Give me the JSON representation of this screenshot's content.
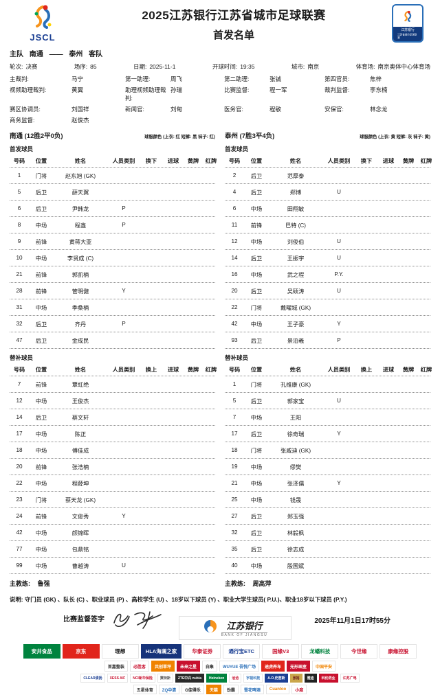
{
  "header": {
    "logo_abbr": "JSCL",
    "title": "2025江苏银行江苏省城市足球联赛",
    "subtitle": "首发名单",
    "badge_line1": "江苏银行",
    "badge_line2": "江苏省城市足球联赛"
  },
  "match": {
    "home_label": "主队",
    "home_team": "南通",
    "vs_dash": "——",
    "away_team": "泰州",
    "away_label": "客队",
    "info": [
      {
        "label": "轮次:",
        "value": "决赛"
      },
      {
        "label": "场序:",
        "value": "85"
      },
      {
        "label": "日期:",
        "value": "2025-11-1"
      },
      {
        "label": "开球时间:",
        "value": "19:35"
      },
      {
        "label": "城市:",
        "value": "南京"
      },
      {
        "label": "体育场:",
        "value": "南京奥体中心体育场"
      }
    ],
    "officials": [
      [
        {
          "label": "主裁判:",
          "value": "马宁"
        },
        {
          "label": "第一助理:",
          "value": "周飞"
        },
        {
          "label": "第二助理:",
          "value": "张铖"
        },
        {
          "label": "第四官员:",
          "value": "焦梓"
        }
      ],
      [
        {
          "label": "视频助理裁判:",
          "value": "黄翼"
        },
        {
          "label": "助理视频助理裁判:",
          "value": "孙瑞"
        },
        {
          "label": "比赛监督:",
          "value": "程一军"
        },
        {
          "label": "裁判监督:",
          "value": "李东楠"
        }
      ],
      [
        {
          "label": "赛区协调员:",
          "value": "刘国祥"
        },
        {
          "label": "新闻官:",
          "value": "刘甸"
        },
        {
          "label": "医务官:",
          "value": "程敏"
        },
        {
          "label": "安保官:",
          "value": "林念龙"
        }
      ],
      [
        {
          "label": "商务监督:",
          "value": "赵俊杰"
        }
      ]
    ]
  },
  "teams": [
    {
      "title": "南通 (12胜2平0负)",
      "kit": "球服颜色 (上衣: 红 短裤: 黑 袜子: 红)",
      "starters_label": "首发球员",
      "starters_columns": [
        "号码",
        "位置",
        "姓名",
        "人员类别",
        "换下",
        "进球",
        "黄牌",
        "红牌"
      ],
      "starters": [
        {
          "no": "1",
          "pos": "门将",
          "name": "赵东旭 (GK)",
          "cat": ""
        },
        {
          "no": "5",
          "pos": "后卫",
          "name": "薛天翼",
          "cat": ""
        },
        {
          "no": "6",
          "pos": "后卫",
          "name": "尹韩龙",
          "cat": "P"
        },
        {
          "no": "8",
          "pos": "中场",
          "name": "程鑫",
          "cat": "P"
        },
        {
          "no": "9",
          "pos": "前锋",
          "name": "黄蒋大亚",
          "cat": ""
        },
        {
          "no": "10",
          "pos": "中场",
          "name": "李贤成 (C)",
          "cat": ""
        },
        {
          "no": "21",
          "pos": "前锋",
          "name": "郭凯楠",
          "cat": ""
        },
        {
          "no": "28",
          "pos": "前锋",
          "name": "管明健",
          "cat": "Y"
        },
        {
          "no": "31",
          "pos": "中场",
          "name": "季桑楠",
          "cat": ""
        },
        {
          "no": "32",
          "pos": "后卫",
          "name": "齐丹",
          "cat": "P"
        },
        {
          "no": "47",
          "pos": "后卫",
          "name": "金成民",
          "cat": ""
        }
      ],
      "subs_label": "替补球员",
      "subs_columns": [
        "号码",
        "位置",
        "姓名",
        "人员类别",
        "换上",
        "进球",
        "黄牌",
        "红牌"
      ],
      "subs": [
        {
          "no": "7",
          "pos": "前锋",
          "name": "覃虹绝",
          "cat": ""
        },
        {
          "no": "12",
          "pos": "中场",
          "name": "王俊杰",
          "cat": ""
        },
        {
          "no": "14",
          "pos": "后卫",
          "name": "蔡文轩",
          "cat": ""
        },
        {
          "no": "17",
          "pos": "中场",
          "name": "陈正",
          "cat": ""
        },
        {
          "no": "18",
          "pos": "中场",
          "name": "傅佳成",
          "cat": ""
        },
        {
          "no": "20",
          "pos": "前锋",
          "name": "张浩楠",
          "cat": ""
        },
        {
          "no": "22",
          "pos": "中场",
          "name": "程薛坤",
          "cat": ""
        },
        {
          "no": "23",
          "pos": "门将",
          "name": "蔡天龙 (GK)",
          "cat": ""
        },
        {
          "no": "24",
          "pos": "前锋",
          "name": "文俊秀",
          "cat": "Y"
        },
        {
          "no": "42",
          "pos": "中场",
          "name": "颜锦晖",
          "cat": ""
        },
        {
          "no": "77",
          "pos": "中场",
          "name": "包鼎铭",
          "cat": ""
        },
        {
          "no": "99",
          "pos": "中场",
          "name": "曹越涛",
          "cat": "U"
        }
      ],
      "coach_label": "主教练:",
      "coach": "鲁强"
    },
    {
      "title": "泰州 (7胜3平4负)",
      "kit": "球服颜色 (上衣: 黄 短裤: 灰 袜子: 黄)",
      "starters_label": "首发球员",
      "starters_columns": [
        "号码",
        "位置",
        "姓名",
        "人员类别",
        "换下",
        "进球",
        "黄牌",
        "红牌"
      ],
      "starters": [
        {
          "no": "2",
          "pos": "后卫",
          "name": "范厚泰",
          "cat": ""
        },
        {
          "no": "4",
          "pos": "后卫",
          "name": "郑博",
          "cat": "U"
        },
        {
          "no": "6",
          "pos": "中场",
          "name": "田翔敏",
          "cat": ""
        },
        {
          "no": "11",
          "pos": "前锋",
          "name": "巴特 (C)",
          "cat": ""
        },
        {
          "no": "12",
          "pos": "中场",
          "name": "刘俊伯",
          "cat": "U"
        },
        {
          "no": "14",
          "pos": "后卫",
          "name": "王振宇",
          "cat": "U"
        },
        {
          "no": "16",
          "pos": "中场",
          "name": "武之程",
          "cat": "P.Y."
        },
        {
          "no": "20",
          "pos": "后卫",
          "name": "吴硕涛",
          "cat": "U"
        },
        {
          "no": "22",
          "pos": "门将",
          "name": "戴曜城 (GK)",
          "cat": ""
        },
        {
          "no": "42",
          "pos": "中场",
          "name": "王子豪",
          "cat": "Y"
        },
        {
          "no": "93",
          "pos": "后卫",
          "name": "景泊羲",
          "cat": "P"
        }
      ],
      "subs_label": "替补球员",
      "subs_columns": [
        "号码",
        "位置",
        "姓名",
        "人员类别",
        "换上",
        "进球",
        "黄牌",
        "红牌"
      ],
      "subs": [
        {
          "no": "1",
          "pos": "门将",
          "name": "孔维康 (GK)",
          "cat": ""
        },
        {
          "no": "5",
          "pos": "后卫",
          "name": "郭家宝",
          "cat": "U"
        },
        {
          "no": "7",
          "pos": "中场",
          "name": "王阳",
          "cat": ""
        },
        {
          "no": "17",
          "pos": "后卫",
          "name": "徐奇瑞",
          "cat": "Y"
        },
        {
          "no": "18",
          "pos": "门将",
          "name": "张威迪 (GK)",
          "cat": ""
        },
        {
          "no": "19",
          "pos": "中场",
          "name": "缪樊",
          "cat": ""
        },
        {
          "no": "21",
          "pos": "中场",
          "name": "张泽儒",
          "cat": "Y"
        },
        {
          "no": "25",
          "pos": "中场",
          "name": "钱晟",
          "cat": ""
        },
        {
          "no": "27",
          "pos": "后卫",
          "name": "郑玉强",
          "cat": ""
        },
        {
          "no": "32",
          "pos": "后卫",
          "name": "林毅枫",
          "cat": ""
        },
        {
          "no": "35",
          "pos": "后卫",
          "name": "徐志成",
          "cat": ""
        },
        {
          "no": "40",
          "pos": "中场",
          "name": "殷国斌",
          "cat": ""
        }
      ],
      "coach_label": "主教练:",
      "coach": "周高萍"
    }
  ],
  "footer": {
    "note": "说明: 守门员 (GK) 、队长 (C) 、职业球员 (P) 、高校学生 (U) 、18岁以下球员 (Y) 、职业大学生球员( P.U.)、职业18岁以下球员 (P.Y.)",
    "sign_label": "比赛监督签字",
    "signature_name": "程一军",
    "datetime": "2025年11月1日17时55分",
    "bank_name": "江苏银行",
    "bank_sub": "BANK OF JIANGSU"
  },
  "sponsors": {
    "row1": [
      {
        "label": "安井食品",
        "bg": "#00833e",
        "fg": "#ffffff"
      },
      {
        "label": "京东",
        "bg": "#e1251b",
        "fg": "#ffffff"
      },
      {
        "label": "理想",
        "bg": "#ffffff",
        "fg": "#111111"
      },
      {
        "label": "HLA海澜之家",
        "bg": "#16337a",
        "fg": "#ffffff"
      },
      {
        "label": "华泰证券",
        "bg": "#ffffff",
        "fg": "#c8102e"
      },
      {
        "label": "通行宝ETC",
        "bg": "#ffffff",
        "fg": "#1b3f93"
      },
      {
        "label": "国缘V3",
        "bg": "#ffffff",
        "fg": "#c8102e"
      },
      {
        "label": "龙蟠科技",
        "bg": "#ffffff",
        "fg": "#00833e"
      },
      {
        "label": "今世缘",
        "bg": "#ffffff",
        "fg": "#c8102e"
      },
      {
        "label": "康缘控股",
        "bg": "#ffffff",
        "fg": "#c8102e"
      }
    ],
    "row2": [
      {
        "label": "首嘉整装",
        "bg": "#ffffff",
        "fg": "#333333"
      },
      {
        "label": "必胜客",
        "bg": "#ffffff",
        "fg": "#c8102e"
      },
      {
        "label": "共创草坪",
        "bg": "#f08300",
        "fg": "#ffffff"
      },
      {
        "label": "未来之星",
        "bg": "#c8102e",
        "fg": "#ffffff"
      },
      {
        "label": "白象",
        "bg": "#ffffff",
        "fg": "#222222"
      },
      {
        "label": "WUYUE 吾悦广场",
        "bg": "#ffffff",
        "fg": "#2a6fb8"
      },
      {
        "label": "途虎养车",
        "bg": "#e1251b",
        "fg": "#ffffff"
      },
      {
        "label": "无形画室",
        "bg": "#c8102e",
        "fg": "#ffffff"
      },
      {
        "label": "中国平安",
        "bg": "#ffffff",
        "fg": "#f08300"
      }
    ],
    "row3": [
      {
        "label": "CLEAR清扬",
        "bg": "#ffffff",
        "fg": "#1b3f93"
      },
      {
        "label": "XESS A/F",
        "bg": "#ffffff",
        "fg": "#c8102e"
      },
      {
        "label": "NCI新华保险",
        "bg": "#ffffff",
        "fg": "#c8102e"
      },
      {
        "label": "赛特斯",
        "bg": "#ffffff",
        "fg": "#555555"
      },
      {
        "label": "ZTE中兴 nubia",
        "bg": "#2a2a2a",
        "fg": "#ffffff"
      },
      {
        "label": "Heineken",
        "bg": "#00833e",
        "fg": "#ffffff"
      },
      {
        "label": "洽洽",
        "bg": "#ffffff",
        "fg": "#c8102e"
      },
      {
        "label": "宇视科技",
        "bg": "#ffffff",
        "fg": "#2a6fb8"
      },
      {
        "label": "A.O.史密斯",
        "bg": "#1b3f93",
        "fg": "#ffffff"
      },
      {
        "label": "张裕",
        "bg": "#caa64b",
        "fg": "#6b1d1d"
      },
      {
        "label": "雅迪",
        "bg": "#222222",
        "fg": "#ffffff"
      },
      {
        "label": "科伦药业",
        "bg": "#c8102e",
        "fg": "#ffffff"
      },
      {
        "label": "江苏广电",
        "bg": "#ffffff",
        "fg": "#c8102e"
      }
    ],
    "row4": [
      {
        "label": "五星体育",
        "bg": "#ffffff",
        "fg": "#333333"
      },
      {
        "label": "ZQ中清",
        "bg": "#ffffff",
        "fg": "#2a6fb8"
      },
      {
        "label": "G佳得乐",
        "bg": "#ffffff",
        "fg": "#222222"
      },
      {
        "label": "天猫",
        "bg": "#f08300",
        "fg": "#ffffff"
      },
      {
        "label": "劲霸",
        "bg": "#ffffff",
        "fg": "#333333"
      },
      {
        "label": "雪花啤酒",
        "bg": "#ffffff",
        "fg": "#2a6fb8"
      },
      {
        "label": "Cuantoo",
        "bg": "#ffffff",
        "fg": "#f08300"
      },
      {
        "label": "小度",
        "bg": "#ffffff",
        "fg": "#c8102e"
      }
    ]
  }
}
